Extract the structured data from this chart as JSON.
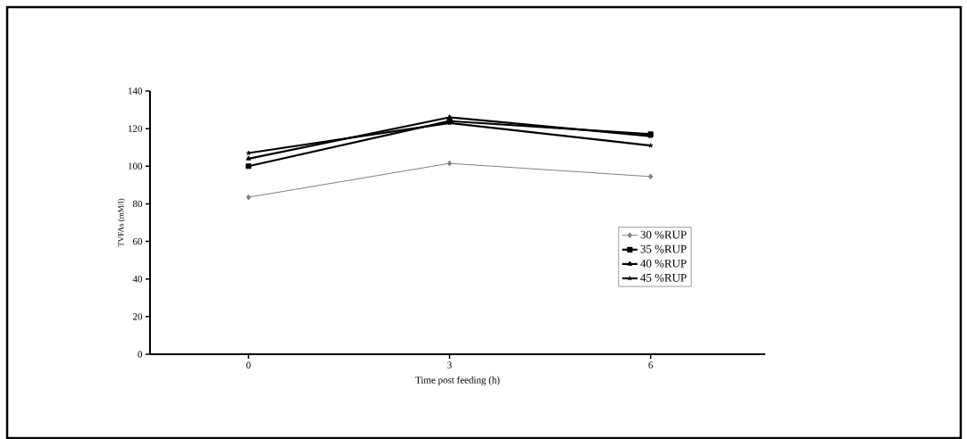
{
  "chart_data": {
    "type": "line",
    "xlabel": "Time post feeding (h)",
    "ylabel": "TVFAs (mM/l)",
    "categories": [
      "0",
      "3",
      "6"
    ],
    "series": [
      {
        "name": "30 %RUP",
        "color": "#808080",
        "values": [
          83.5,
          101.5,
          94.5
        ],
        "marker": "diamond"
      },
      {
        "name": "35 %RUP",
        "color": "#000000",
        "values": [
          100,
          124,
          117
        ],
        "marker": "square"
      },
      {
        "name": "40 %RUP",
        "color": "#000000",
        "values": [
          104,
          126,
          116
        ],
        "marker": "triangle"
      },
      {
        "name": "45 %RUP",
        "color": "#000000",
        "values": [
          107,
          123,
          111
        ],
        "marker": "cross"
      }
    ],
    "ylim": [
      0,
      140
    ],
    "yticks": [
      0,
      20,
      40,
      60,
      80,
      100,
      120,
      140
    ],
    "grid": false,
    "legend": "right",
    "line_style": "solid"
  }
}
